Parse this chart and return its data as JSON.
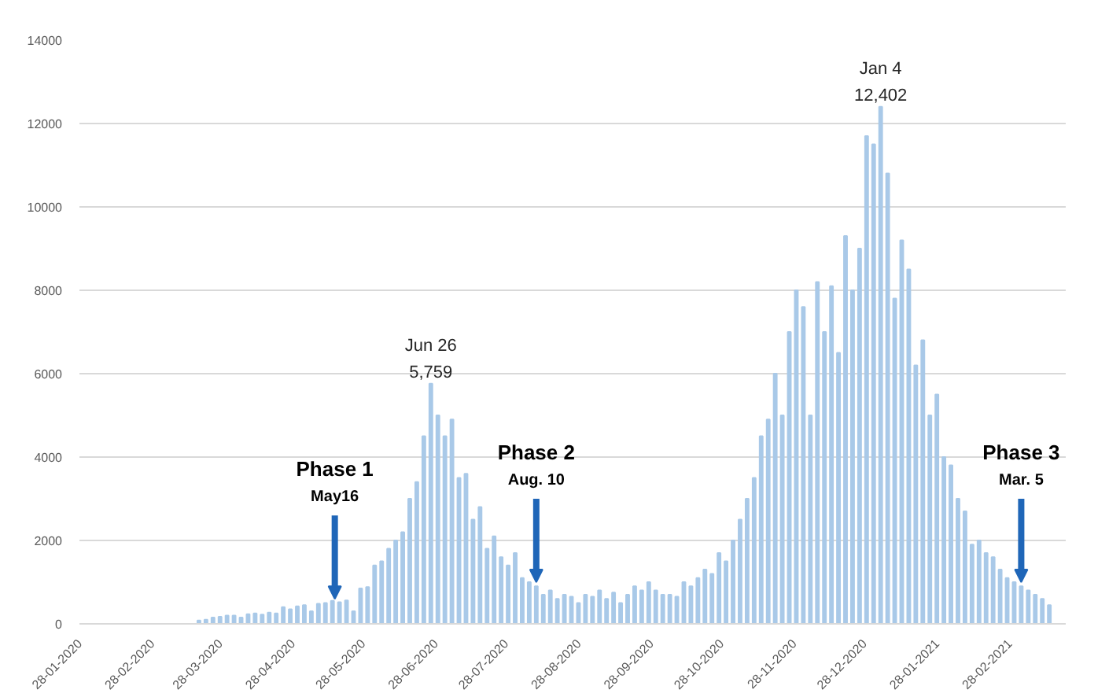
{
  "chart_data": {
    "type": "bar",
    "color": "#a9c9e8",
    "x": [
      "2020-03-19",
      "2020-03-22",
      "2020-03-25",
      "2020-03-28",
      "2020-03-31",
      "2020-04-03",
      "2020-04-06",
      "2020-04-09",
      "2020-04-12",
      "2020-04-15",
      "2020-04-18",
      "2020-04-21",
      "2020-04-24",
      "2020-04-27",
      "2020-04-30",
      "2020-05-03",
      "2020-05-06",
      "2020-05-09",
      "2020-05-12",
      "2020-05-15",
      "2020-05-18",
      "2020-05-21",
      "2020-05-24",
      "2020-05-27",
      "2020-05-30",
      "2020-06-02",
      "2020-06-05",
      "2020-06-08",
      "2020-06-11",
      "2020-06-14",
      "2020-06-17",
      "2020-06-20",
      "2020-06-23",
      "2020-06-26",
      "2020-06-29",
      "2020-07-02",
      "2020-07-05",
      "2020-07-08",
      "2020-07-11",
      "2020-07-14",
      "2020-07-17",
      "2020-07-20",
      "2020-07-23",
      "2020-07-26",
      "2020-07-29",
      "2020-08-01",
      "2020-08-04",
      "2020-08-07",
      "2020-08-10",
      "2020-08-13",
      "2020-08-16",
      "2020-08-19",
      "2020-08-22",
      "2020-08-25",
      "2020-08-28",
      "2020-08-31",
      "2020-09-03",
      "2020-09-06",
      "2020-09-09",
      "2020-09-12",
      "2020-09-15",
      "2020-09-18",
      "2020-09-21",
      "2020-09-24",
      "2020-09-27",
      "2020-09-30",
      "2020-10-03",
      "2020-10-06",
      "2020-10-09",
      "2020-10-12",
      "2020-10-15",
      "2020-10-18",
      "2020-10-21",
      "2020-10-24",
      "2020-10-27",
      "2020-10-30",
      "2020-11-02",
      "2020-11-05",
      "2020-11-08",
      "2020-11-11",
      "2020-11-14",
      "2020-11-17",
      "2020-11-20",
      "2020-11-23",
      "2020-11-26",
      "2020-11-29",
      "2020-12-02",
      "2020-12-05",
      "2020-12-08",
      "2020-12-11",
      "2020-12-14",
      "2020-12-17",
      "2020-12-20",
      "2020-12-23",
      "2020-12-26",
      "2020-12-29",
      "2021-01-01",
      "2021-01-04",
      "2021-01-07",
      "2021-01-10",
      "2021-01-13",
      "2021-01-16",
      "2021-01-19",
      "2021-01-22",
      "2021-01-25",
      "2021-01-28",
      "2021-01-31",
      "2021-02-03",
      "2021-02-06",
      "2021-02-09",
      "2021-02-12",
      "2021-02-15",
      "2021-02-18",
      "2021-02-21",
      "2021-02-24",
      "2021-02-27",
      "2021-03-02",
      "2021-03-05",
      "2021-03-08",
      "2021-03-11",
      "2021-03-14",
      "2021-03-17"
    ],
    "values": [
      80,
      100,
      150,
      170,
      200,
      200,
      150,
      230,
      250,
      220,
      270,
      250,
      400,
      350,
      420,
      450,
      300,
      480,
      500,
      550,
      520,
      560,
      300,
      850,
      880,
      1400,
      1500,
      1800,
      2000,
      2200,
      3000,
      3400,
      4500,
      5759,
      5000,
      4500,
      4900,
      3500,
      3600,
      2500,
      2800,
      1800,
      2100,
      1600,
      1400,
      1700,
      1100,
      1000,
      900,
      700,
      800,
      600,
      700,
      650,
      500,
      700,
      650,
      800,
      600,
      750,
      500,
      700,
      900,
      800,
      1000,
      800,
      700,
      700,
      650,
      1000,
      900,
      1100,
      1300,
      1200,
      1700,
      1500,
      2000,
      2500,
      3000,
      3500,
      4500,
      4900,
      6000,
      5000,
      7000,
      8000,
      7600,
      5000,
      8200,
      7000,
      8100,
      6500,
      9300,
      8000,
      9000,
      11700,
      11500,
      12402,
      10800,
      7800,
      9200,
      8500,
      6200,
      6800,
      5000,
      5500,
      4000,
      3800,
      3000,
      2700,
      1900,
      2000,
      1700,
      1600,
      1300,
      1100,
      1000,
      900,
      800,
      700,
      600,
      450
    ],
    "xlim": [
      "2020-01-28",
      "2021-03-24"
    ],
    "xticks": [
      {
        "value": "2020-01-28",
        "label": "28-01-2020"
      },
      {
        "value": "2020-02-28",
        "label": "28-02-2020"
      },
      {
        "value": "2020-03-28",
        "label": "28-03-2020"
      },
      {
        "value": "2020-04-28",
        "label": "28-04-2020"
      },
      {
        "value": "2020-05-28",
        "label": "28-05-2020"
      },
      {
        "value": "2020-06-28",
        "label": "28-06-2020"
      },
      {
        "value": "2020-07-28",
        "label": "28-07-2020"
      },
      {
        "value": "2020-08-28",
        "label": "28-08-2020"
      },
      {
        "value": "2020-09-28",
        "label": "28-09-2020"
      },
      {
        "value": "2020-10-28",
        "label": "28-10-2020"
      },
      {
        "value": "2020-11-28",
        "label": "28-11-2020"
      },
      {
        "value": "2020-12-28",
        "label": "28-12-2020"
      },
      {
        "value": "2021-01-28",
        "label": "28-01-2021"
      },
      {
        "value": "2021-02-28",
        "label": "28-02-2021"
      }
    ],
    "ylim": [
      0,
      14000
    ],
    "yticks": [
      0,
      2000,
      4000,
      6000,
      8000,
      10000,
      12000,
      14000
    ],
    "grid": "y",
    "annotations": [
      {
        "text": "Jun 26\n5,759",
        "x": "2020-06-26",
        "y": 5759
      },
      {
        "text": "Jan 4\n12,402",
        "x": "2021-01-04",
        "y": 12402
      },
      {
        "text": "Phase 1\nMay16",
        "x": "2020-05-16",
        "y": 600
      },
      {
        "text": "Phase 2\nAug. 10",
        "x": "2020-08-10",
        "y": 1000
      },
      {
        "text": "Phase 3\nMar. 5",
        "x": "2021-03-05",
        "y": 1000
      }
    ]
  }
}
